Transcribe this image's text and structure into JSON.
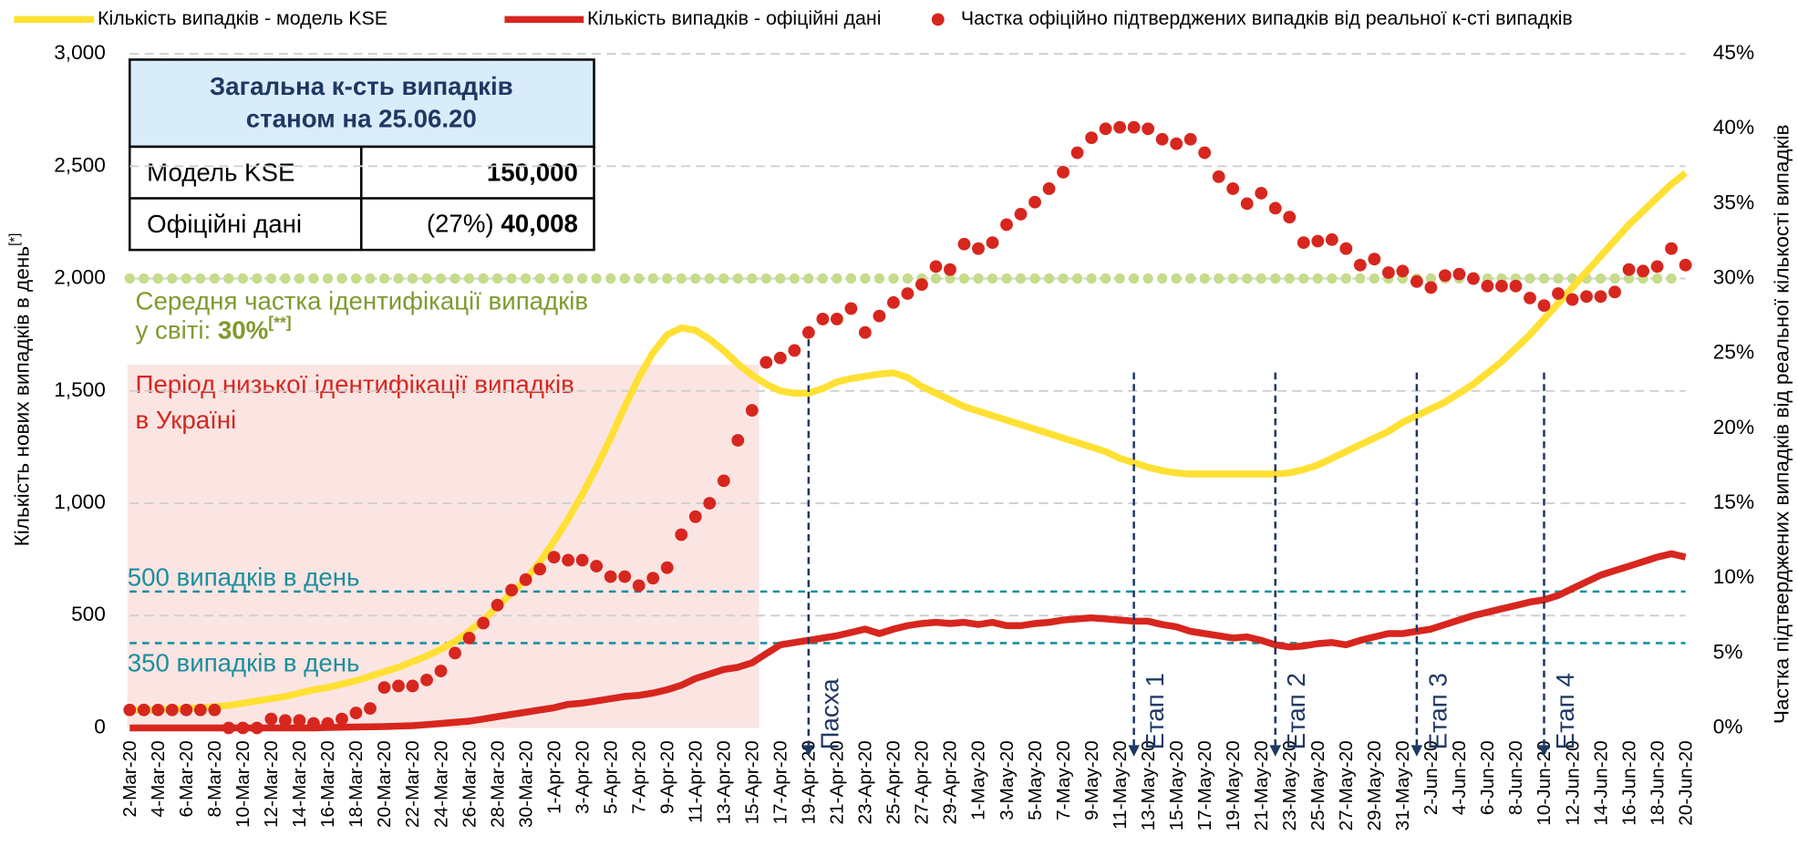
{
  "chart_data": {
    "type": "line",
    "legend": {
      "position": "top"
    },
    "categories": [
      "2-Mar-20",
      null,
      "4-Mar-20",
      null,
      "6-Mar-20",
      null,
      "8-Mar-20",
      null,
      "10-Mar-20",
      null,
      "12-Mar-20",
      null,
      "14-Mar-20",
      null,
      "16-Mar-20",
      null,
      "18-Mar-20",
      null,
      "20-Mar-20",
      null,
      "22-Mar-20",
      null,
      "24-Mar-20",
      null,
      "26-Mar-20",
      null,
      "28-Mar-20",
      null,
      "30-Mar-20",
      null,
      "1-Apr-20",
      null,
      "3-Apr-20",
      null,
      "5-Apr-20",
      null,
      "7-Apr-20",
      null,
      "9-Apr-20",
      null,
      "11-Apr-20",
      null,
      "13-Apr-20",
      null,
      "15-Apr-20",
      null,
      "17-Apr-20",
      null,
      "19-Apr-20",
      null,
      "21-Apr-20",
      null,
      "23-Apr-20",
      null,
      "25-Apr-20",
      null,
      "27-Apr-20",
      null,
      "29-Apr-20",
      null,
      "1-May-20",
      null,
      "3-May-20",
      null,
      "5-May-20",
      null,
      "7-May-20",
      null,
      "9-May-20",
      null,
      "11-May-20",
      null,
      "13-May-20",
      null,
      "15-May-20",
      null,
      "17-May-20",
      null,
      "19-May-20",
      null,
      "21-May-20",
      null,
      "23-May-20",
      null,
      "25-May-20",
      null,
      "27-May-20",
      null,
      "29-May-20",
      null,
      "31-May-20",
      null,
      "2-Jun-20",
      null,
      "4-Jun-20",
      null,
      "6-Jun-20",
      null,
      "8-Jun-20",
      null,
      "10-Jun-20",
      null,
      "12-Jun-20",
      null,
      "14-Jun-20",
      null,
      "16-Jun-20",
      null,
      "18-Jun-20",
      null,
      "20-Jun-20"
    ],
    "series": [
      {
        "name": "Кількість випадків - модель KSE",
        "color": "#ffe033",
        "style": "line",
        "values": [
          80,
          80,
          82,
          84,
          86,
          90,
          95,
          100,
          110,
          120,
          130,
          140,
          155,
          170,
          180,
          195,
          210,
          230,
          250,
          270,
          295,
          320,
          350,
          385,
          430,
          480,
          540,
          600,
          660,
          740,
          830,
          930,
          1040,
          1160,
          1290,
          1430,
          1560,
          1670,
          1750,
          1780,
          1770,
          1730,
          1680,
          1620,
          1570,
          1530,
          1500,
          1490,
          1490,
          1510,
          1540,
          1555,
          1565,
          1575,
          1580,
          1560,
          1520,
          1490,
          1460,
          1430,
          1410,
          1390,
          1370,
          1350,
          1330,
          1310,
          1290,
          1270,
          1250,
          1230,
          1200,
          1180,
          1160,
          1145,
          1135,
          1130,
          1130,
          1130,
          1130,
          1130,
          1130,
          1130,
          1135,
          1150,
          1170,
          1200,
          1230,
          1260,
          1290,
          1320,
          1360,
          1390,
          1420,
          1450,
          1490,
          1530,
          1580,
          1630,
          1690,
          1750,
          1820,
          1890,
          1960,
          2030,
          2100,
          2170,
          2240,
          2300,
          2360,
          2420,
          2470
        ]
      },
      {
        "name": "Кількість випадків - офіційні дані",
        "color": "#d7261e",
        "style": "line",
        "values": [
          0,
          0,
          0,
          0,
          0,
          0,
          0,
          0,
          0,
          0,
          0,
          0,
          0,
          0,
          2,
          3,
          4,
          5,
          6,
          8,
          10,
          15,
          20,
          25,
          30,
          40,
          50,
          60,
          70,
          80,
          90,
          105,
          110,
          120,
          130,
          140,
          145,
          155,
          170,
          190,
          220,
          240,
          260,
          270,
          290,
          330,
          370,
          380,
          390,
          400,
          410,
          425,
          440,
          420,
          440,
          455,
          465,
          470,
          465,
          470,
          460,
          470,
          455,
          455,
          465,
          470,
          480,
          485,
          490,
          485,
          480,
          475,
          475,
          460,
          450,
          430,
          420,
          410,
          400,
          405,
          390,
          370,
          360,
          365,
          375,
          380,
          370,
          390,
          405,
          420,
          420,
          430,
          440,
          460,
          480,
          500,
          515,
          530,
          545,
          560,
          570,
          590,
          620,
          650,
          680,
          700,
          720,
          740,
          760,
          775,
          760
        ]
      },
      {
        "name": "Частка офіційно підтверджених випадків від реальної к-сті випадків",
        "color": "#d7261e",
        "style": "dots",
        "axis": "y2",
        "values": [
          1.2,
          1.2,
          1.2,
          1.2,
          1.2,
          1.2,
          1.2,
          0,
          0,
          0,
          0.6,
          0.5,
          0.5,
          0.3,
          0.3,
          0.6,
          1.0,
          1.3,
          2.7,
          2.8,
          2.8,
          3.2,
          3.8,
          5.0,
          6.0,
          7.0,
          8.2,
          9.2,
          9.9,
          10.6,
          11.4,
          11.2,
          11.2,
          10.8,
          10.1,
          10.1,
          9.5,
          10.0,
          10.7,
          12.9,
          14.1,
          15.0,
          16.5,
          19.2,
          21.2,
          24.4,
          24.7,
          25.2,
          26.4,
          27.3,
          27.3,
          28.0,
          26.4,
          27.5,
          28.4,
          29.0,
          29.6,
          30.8,
          30.6,
          32.3,
          32.0,
          32.4,
          33.6,
          34.3,
          35.1,
          36.0,
          37.1,
          38.4,
          39.4,
          40.0,
          40.1,
          40.1,
          40.0,
          39.3,
          39.0,
          39.3,
          38.4,
          36.8,
          36.0,
          35.0,
          35.7,
          34.7,
          34.1,
          32.4,
          32.5,
          32.6,
          32.0,
          30.9,
          31.3,
          30.4,
          30.5,
          29.8,
          29.4,
          30.2,
          30.3,
          30.0,
          29.5,
          29.5,
          29.5,
          28.7,
          28.2,
          29.0,
          28.6,
          28.8,
          28.8,
          29.1,
          30.6,
          30.5,
          30.8,
          32.0,
          30.9
        ]
      }
    ],
    "ylim": [
      0,
      3000
    ],
    "yticks": [
      0,
      500,
      {
        "value": 1000,
        "label": "1,000"
      },
      {
        "value": 1500,
        "label": "1,500"
      },
      {
        "value": 2000,
        "label": "2,000"
      },
      {
        "value": 2500,
        "label": "2,500"
      },
      {
        "value": 3000,
        "label": "3,000"
      }
    ],
    "y2lim": [
      0,
      45
    ],
    "y2ticks": [
      {
        "value": 0,
        "label": "0%"
      },
      {
        "value": 5,
        "label": "5%"
      },
      {
        "value": 10,
        "label": "10%"
      },
      {
        "value": 15,
        "label": "15%"
      },
      {
        "value": 20,
        "label": "20%"
      },
      {
        "value": 25,
        "label": "25%"
      },
      {
        "value": 30,
        "label": "30%"
      },
      {
        "value": 35,
        "label": "35%"
      },
      {
        "value": 40,
        "label": "40%"
      },
      {
        "value": 45,
        "label": "45%"
      }
    ],
    "grid": true,
    "ylabel": "Кількість нових випадків в день",
    "ylabel_note": "[*]",
    "y2label": "Частка підтверджених випадків від реальної кількості випадків",
    "world_average": {
      "value": 30,
      "color": "#c5dc8a",
      "text": "Середня частка ідентифікації випадків",
      "text2": "у світі: ",
      "label": "30%",
      "note": "[**]"
    },
    "period": {
      "start": "2-Mar-20",
      "end": "15-Apr-20",
      "text": "Період низької ідентифікації випадків",
      "text2": "в Україні"
    },
    "reference_texts": [
      "500 випадків в день",
      "350 випадків в день"
    ],
    "events": [
      {
        "x": "19-Apr-20",
        "label": "Пасха"
      },
      {
        "x": "12-May-20",
        "label": "Етап 1"
      },
      {
        "x": "22-May-20",
        "label": "Етап 2"
      },
      {
        "x": "1-Jun-20",
        "label": "Етап 3"
      },
      {
        "x": "10-Jun-20",
        "label": "Етап 4"
      }
    ],
    "summary_table": {
      "title": [
        "Загальна к-сть випадків",
        "станом на 25.06.20"
      ],
      "rows": [
        [
          "Модель KSE",
          "150,000"
        ],
        [
          "Офіційні дані",
          "(27%) ",
          "40,008"
        ]
      ]
    }
  }
}
